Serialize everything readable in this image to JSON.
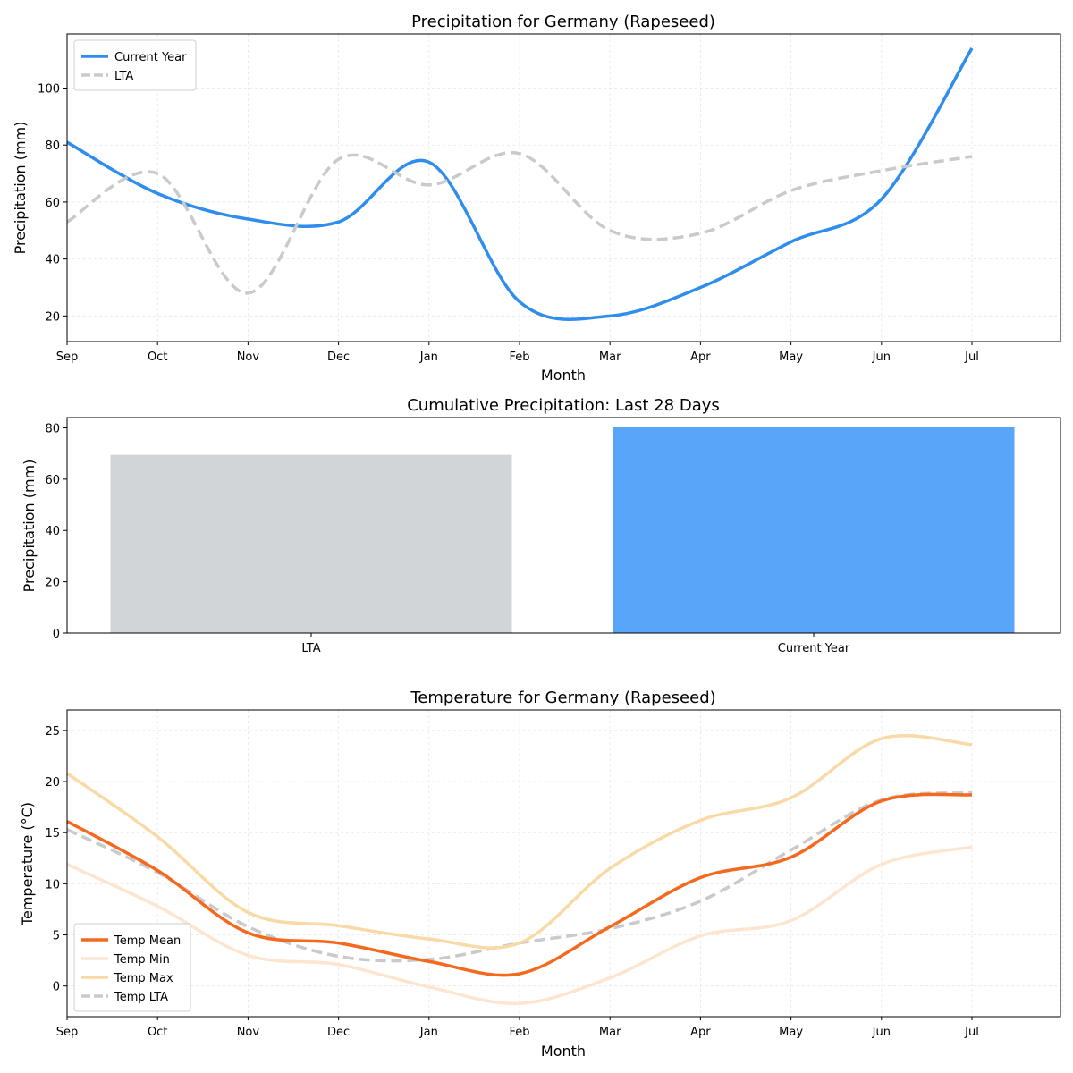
{
  "chart_data": [
    {
      "type": "line",
      "title": "Precipitation for Germany (Rapeseed)",
      "xlabel": "Month",
      "ylabel": "Precipitation (mm)",
      "categories": [
        "Sep",
        "Oct",
        "Nov",
        "Dec",
        "Jan",
        "Feb",
        "Mar",
        "Apr",
        "May",
        "Jun",
        "Jul"
      ],
      "ylim": [
        11,
        119
      ],
      "yticks": [
        20,
        40,
        60,
        80,
        100
      ],
      "grid": true,
      "legend": "top-left",
      "series": [
        {
          "name": "Current Year",
          "color": "#2f8ded",
          "style": "solid",
          "values": [
            81,
            63,
            54,
            53,
            74,
            25,
            20,
            30,
            46,
            61,
            114
          ]
        },
        {
          "name": "LTA",
          "color": "#c8cacc",
          "style": "dashed",
          "values": [
            53,
            70,
            28,
            75,
            66,
            77,
            50,
            49,
            64,
            71,
            76
          ]
        }
      ]
    },
    {
      "type": "bar",
      "title": "Cumulative Precipitation: Last 28 Days",
      "xlabel": "",
      "ylabel": "Precipitation (mm)",
      "categories": [
        "LTA",
        "Current Year"
      ],
      "values": [
        69.5,
        80.5
      ],
      "colors": [
        "#d1d5d8",
        "#59a5fa"
      ],
      "ylim": [
        0,
        84
      ],
      "yticks": [
        0,
        20,
        40,
        60,
        80
      ],
      "grid": false
    },
    {
      "type": "line",
      "title": "Temperature for Germany (Rapeseed)",
      "xlabel": "Month",
      "ylabel": "Temperature (°C)",
      "categories": [
        "Sep",
        "Oct",
        "Nov",
        "Dec",
        "Jan",
        "Feb",
        "Mar",
        "Apr",
        "May",
        "Jun",
        "Jul"
      ],
      "ylim": [
        -3,
        27
      ],
      "yticks": [
        0,
        5,
        10,
        15,
        20,
        25
      ],
      "grid": true,
      "legend": "bottom-left",
      "series": [
        {
          "name": "Temp Mean",
          "color": "#f5691f",
          "style": "solid",
          "width": 3.5,
          "values": [
            16.1,
            11.3,
            5.2,
            4.2,
            2.4,
            1.2,
            5.8,
            10.6,
            12.6,
            18.1,
            18.7
          ]
        },
        {
          "name": "Temp Min",
          "color": "#fde5d0",
          "style": "solid",
          "width": 3.5,
          "values": [
            11.9,
            7.8,
            3.0,
            2.1,
            -0.1,
            -1.7,
            0.8,
            4.9,
            6.4,
            11.9,
            13.6
          ]
        },
        {
          "name": "Temp Max",
          "color": "#f9d9a6",
          "style": "solid",
          "width": 3.5,
          "values": [
            20.8,
            14.6,
            7.2,
            5.9,
            4.6,
            4.2,
            11.5,
            16.2,
            18.4,
            24.2,
            23.6
          ]
        },
        {
          "name": "Temp LTA",
          "color": "#c8cacc",
          "style": "dashed",
          "width": 3.5,
          "values": [
            15.3,
            11.1,
            5.8,
            2.9,
            2.6,
            4.2,
            5.6,
            8.3,
            13.3,
            18.2,
            18.9
          ]
        }
      ]
    }
  ]
}
